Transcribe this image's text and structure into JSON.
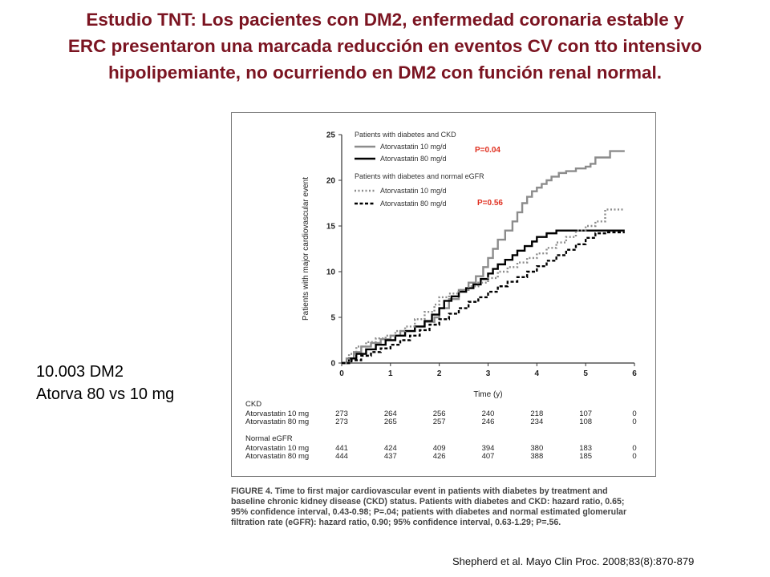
{
  "slide": {
    "title_lines": [
      "Estudio TNT: Los pacientes con DM2, enfermedad coronaria estable y",
      "ERC presentaron una marcada reducción en eventos CV con tto intensivo",
      "hipolipemiante, no ocurriendo en DM2 con función renal normal."
    ],
    "side_note": [
      "10.003 DM2",
      "Atorva 80 vs 10 mg"
    ],
    "citation": "Shepherd et al. Mayo Clin Proc. 2008;83(8):870-879",
    "caption_lines": [
      "FIGURE 4. Time to first major cardiovascular event in patients with diabetes by treatment and",
      "baseline chronic kidney disease (CKD) status. Patients with diabetes and CKD: hazard ratio, 0.65;",
      "95% confidence interval, 0.43-0.98; P=.04; patients with diabetes and normal estimated glomerular",
      "filtration rate (eGFR): hazard ratio, 0.90; 95% confidence interval, 0.63-1.29; P=.56."
    ],
    "title_color": "#7b1421",
    "pvalue_color": "#e03020"
  },
  "chart_data": {
    "type": "line",
    "step": true,
    "xlabel": "Time (y)",
    "ylabel": "Patients with major cardiovascular event",
    "xlim": [
      0,
      6
    ],
    "ylim": [
      0,
      25
    ],
    "xticks": [
      0,
      1,
      2,
      3,
      4,
      5,
      6
    ],
    "yticks": [
      0,
      5,
      10,
      15,
      20,
      25
    ],
    "grid": false,
    "legend_position": "top-left",
    "legend_groups": [
      {
        "title": "Patients with diabetes and CKD",
        "entries": [
          0,
          1
        ]
      },
      {
        "title": "Patients with diabetes and normal eGFR",
        "entries": [
          2,
          3
        ]
      }
    ],
    "annotations": [
      {
        "text": "P=0.04",
        "group": "CKD"
      },
      {
        "text": "P=0.56",
        "group": "normal eGFR"
      }
    ],
    "series": [
      {
        "name": "Atorvastatin 10 mg/d",
        "group": "CKD",
        "color": "#8c8c8c",
        "style": "solid",
        "width": 2.4,
        "x": [
          0,
          0.1,
          0.25,
          0.4,
          0.6,
          0.8,
          1.0,
          1.2,
          1.5,
          1.7,
          1.9,
          2.0,
          2.2,
          2.4,
          2.6,
          2.75,
          2.9,
          3.0,
          3.1,
          3.2,
          3.35,
          3.5,
          3.6,
          3.7,
          3.8,
          3.9,
          4.0,
          4.1,
          4.2,
          4.3,
          4.45,
          4.6,
          4.8,
          5.0,
          5.1,
          5.2,
          5.35,
          5.5,
          5.6,
          5.8
        ],
        "y": [
          0,
          0.5,
          1.2,
          1.8,
          2.2,
          2.6,
          3.0,
          3.5,
          4.0,
          4.5,
          5.0,
          6.0,
          7.0,
          8.0,
          8.8,
          9.5,
          10.5,
          11.5,
          12.5,
          13.5,
          14.5,
          15.5,
          16.5,
          17.5,
          18.2,
          18.8,
          19.2,
          19.6,
          20.0,
          20.4,
          20.8,
          21.0,
          21.3,
          21.5,
          21.8,
          22.5,
          22.5,
          23.2,
          23.2,
          23.2
        ]
      },
      {
        "name": "Atorvastatin 80 mg/d",
        "group": "CKD",
        "color": "#000000",
        "style": "solid",
        "width": 2.4,
        "x": [
          0,
          0.15,
          0.3,
          0.5,
          0.7,
          0.9,
          1.1,
          1.3,
          1.5,
          1.7,
          1.85,
          2.0,
          2.1,
          2.25,
          2.4,
          2.55,
          2.7,
          2.85,
          3.0,
          3.1,
          3.2,
          3.35,
          3.5,
          3.6,
          3.75,
          3.9,
          4.0,
          4.2,
          4.4,
          4.6,
          4.8,
          5.0,
          5.2,
          5.4,
          5.6,
          5.8
        ],
        "y": [
          0,
          0.5,
          1.0,
          1.5,
          2.0,
          2.5,
          3.0,
          3.5,
          4.0,
          4.6,
          5.3,
          6.0,
          6.8,
          7.3,
          7.8,
          8.2,
          8.6,
          9.2,
          9.8,
          10.3,
          10.8,
          11.3,
          11.8,
          12.3,
          12.8,
          13.3,
          13.8,
          14.2,
          14.5,
          14.5,
          14.5,
          14.5,
          14.5,
          14.5,
          14.5,
          14.5
        ]
      },
      {
        "name": "Atorvastatin 10 mg/d",
        "group": "normal eGFR",
        "color": "#8c8c8c",
        "style": "dotted",
        "width": 2.4,
        "x": [
          0,
          0.15,
          0.3,
          0.5,
          0.7,
          0.9,
          1.1,
          1.3,
          1.5,
          1.7,
          1.9,
          2.0,
          2.2,
          2.4,
          2.6,
          2.8,
          3.0,
          3.2,
          3.4,
          3.6,
          3.8,
          4.0,
          4.2,
          4.4,
          4.6,
          4.8,
          5.0,
          5.2,
          5.4,
          5.6,
          5.8
        ],
        "y": [
          0,
          1.0,
          1.8,
          2.3,
          2.7,
          3.0,
          3.5,
          4.0,
          4.8,
          5.6,
          6.4,
          7.2,
          7.6,
          8.0,
          8.4,
          8.8,
          9.3,
          10.0,
          10.5,
          11.0,
          11.5,
          12.0,
          12.6,
          13.2,
          13.8,
          14.5,
          15.0,
          15.5,
          16.8,
          16.8,
          16.8
        ]
      },
      {
        "name": "Atorvastatin 80 mg/d",
        "group": "normal eGFR",
        "color": "#000000",
        "style": "dashed",
        "width": 2.4,
        "x": [
          0,
          0.2,
          0.4,
          0.6,
          0.8,
          1.0,
          1.2,
          1.4,
          1.6,
          1.8,
          2.0,
          2.2,
          2.4,
          2.6,
          2.8,
          3.0,
          3.2,
          3.4,
          3.6,
          3.8,
          4.0,
          4.2,
          4.4,
          4.6,
          4.8,
          5.0,
          5.2,
          5.4,
          5.6,
          5.8
        ],
        "y": [
          0,
          0.3,
          0.8,
          1.2,
          1.6,
          2.0,
          2.5,
          3.0,
          3.6,
          4.2,
          4.8,
          5.4,
          6.0,
          6.7,
          7.2,
          7.8,
          8.4,
          8.9,
          9.4,
          10.0,
          10.6,
          11.2,
          11.8,
          12.4,
          13.0,
          13.7,
          14.2,
          14.3,
          14.3,
          14.3
        ]
      }
    ],
    "risk_table": {
      "time_points": [
        0,
        1,
        2,
        3,
        4,
        5,
        6
      ],
      "groups": [
        {
          "label": "CKD",
          "rows": [
            {
              "label": "Atorvastatin 10 mg",
              "values": [
                "273",
                "264",
                "256",
                "240",
                "218",
                "107",
                "0"
              ]
            },
            {
              "label": "Atorvastatin 80 mg",
              "values": [
                "273",
                "265",
                "257",
                "246",
                "234",
                "108",
                "0"
              ]
            }
          ]
        },
        {
          "label": "Normal eGFR",
          "rows": [
            {
              "label": "Atorvastatin 10 mg",
              "values": [
                "441",
                "424",
                "409",
                "394",
                "380",
                "183",
                "0"
              ]
            },
            {
              "label": "Atorvastatin 80 mg",
              "values": [
                "444",
                "437",
                "426",
                "407",
                "388",
                "185",
                "0"
              ]
            }
          ]
        }
      ]
    }
  }
}
